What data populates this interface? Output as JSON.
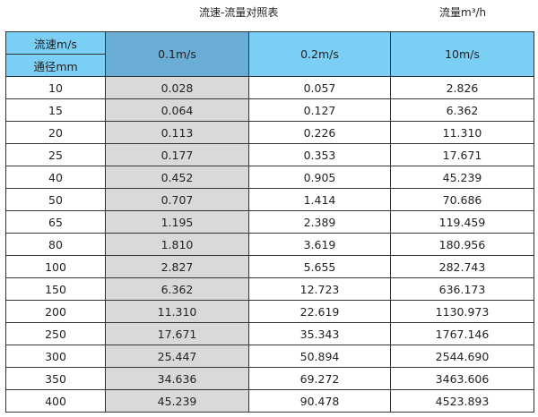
{
  "title": "流速-流量对照表",
  "unit_label": "流量m³/h",
  "header": {
    "velocity_label": "流速m/s",
    "diameter_label": "通径mm",
    "columns": [
      "0.1m/s",
      "0.2m/s",
      "10m/s"
    ]
  },
  "colors": {
    "header": "#7ccff4",
    "header_highlight": "#6aaed6",
    "highlight_column": "#d9d9d9"
  },
  "rows": [
    [
      "10",
      "0.028",
      "0.057",
      "2.826"
    ],
    [
      "15",
      "0.064",
      "0.127",
      "6.362"
    ],
    [
      "20",
      "0.113",
      "0.226",
      "11.310"
    ],
    [
      "25",
      "0.177",
      "0.353",
      "17.671"
    ],
    [
      "40",
      "0.452",
      "0.905",
      "45.239"
    ],
    [
      "50",
      "0.707",
      "1.414",
      "70.686"
    ],
    [
      "65",
      "1.195",
      "2.389",
      "119.459"
    ],
    [
      "80",
      "1.810",
      "3.619",
      "180.956"
    ],
    [
      "100",
      "2.827",
      "5.655",
      "282.743"
    ],
    [
      "150",
      "6.362",
      "12.723",
      "636.173"
    ],
    [
      "200",
      "11.310",
      "22.619",
      "1130.973"
    ],
    [
      "250",
      "17.671",
      "35.343",
      "1767.146"
    ],
    [
      "300",
      "25.447",
      "50.894",
      "2544.690"
    ],
    [
      "350",
      "34.636",
      "69.272",
      "3463.606"
    ],
    [
      "400",
      "45.239",
      "90.478",
      "4523.893"
    ]
  ]
}
